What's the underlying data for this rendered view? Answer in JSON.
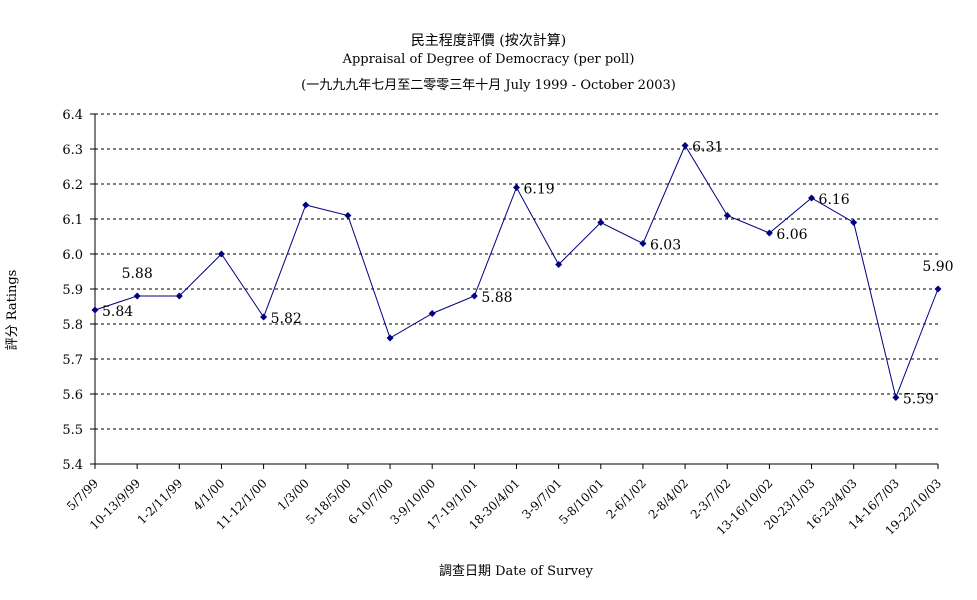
{
  "chart_data": {
    "type": "line",
    "title": "民主程度評價 (按次計算)",
    "subtitle": "Appraisal of Degree of Democracy (per poll)",
    "subtitle2": "(一九九九年七月至二零零三年十月 July 1999 - October 2003)",
    "xlabel": "調查日期 Date of Survey",
    "ylabel": "評分 Ratings",
    "ylim": [
      5.4,
      6.4
    ],
    "yticks": [
      "5.4",
      "5.5",
      "5.6",
      "5.7",
      "5.8",
      "5.9",
      "6.0",
      "6.1",
      "6.2",
      "6.3",
      "6.4"
    ],
    "grid": true,
    "categories": [
      "5/7/99",
      "10-13/9/99",
      "1-2/11/99",
      "4/1/00",
      "11-12/1/00",
      "1/3/00",
      "5-18/5/00",
      "6-10/7/00",
      "3-9/10/00",
      "17-19/1/01",
      "18-30/4/01",
      "3-9/7/01",
      "5-8/10/01",
      "2-6/1/02",
      "2-8/4/02",
      "2-3/7/02",
      "13-16/10/02",
      "20-23/1/03",
      "16-23/4/03",
      "14-16/7/03",
      "19-22/10/03"
    ],
    "series": [
      {
        "color": "#000080",
        "values": [
          5.84,
          5.88,
          5.88,
          6.0,
          5.82,
          6.14,
          6.11,
          5.76,
          5.83,
          5.88,
          6.19,
          5.97,
          6.09,
          6.03,
          6.31,
          6.11,
          6.06,
          6.16,
          6.09,
          5.59,
          5.9
        ]
      }
    ],
    "data_labels": [
      {
        "index": 0,
        "text": "5.84",
        "pos": "right"
      },
      {
        "index": 1,
        "text": "5.88",
        "pos": "above"
      },
      {
        "index": 4,
        "text": "5.82",
        "pos": "right"
      },
      {
        "index": 9,
        "text": "5.88",
        "pos": "right"
      },
      {
        "index": 10,
        "text": "6.19",
        "pos": "right"
      },
      {
        "index": 13,
        "text": "6.03",
        "pos": "right"
      },
      {
        "index": 14,
        "text": "6.31",
        "pos": "right"
      },
      {
        "index": 16,
        "text": "6.06",
        "pos": "right"
      },
      {
        "index": 17,
        "text": "6.16",
        "pos": "right"
      },
      {
        "index": 19,
        "text": "5.59",
        "pos": "right"
      },
      {
        "index": 20,
        "text": "5.90",
        "pos": "above"
      }
    ]
  }
}
